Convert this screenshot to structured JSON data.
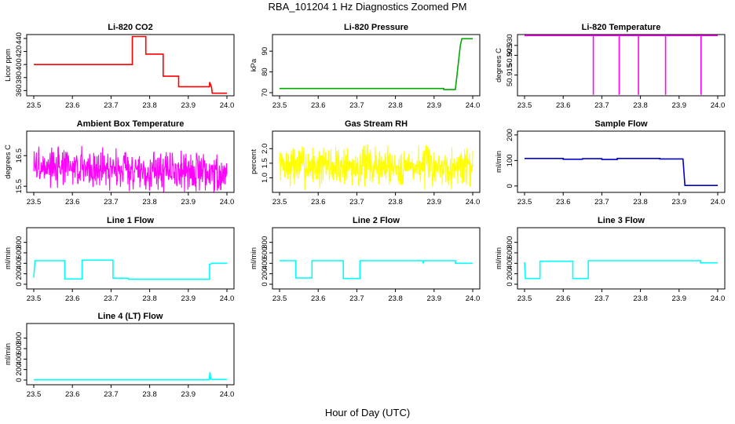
{
  "page": {
    "title": "RBA_101204  1 Hz Diagnostics Zoomed PM",
    "xlabel": "Hour of Day (UTC)"
  },
  "chart_data": [
    {
      "type": "line",
      "title": "Li-820 CO2",
      "ylabel": "Licor ppm",
      "color": "#ff0000",
      "xlim": [
        23.5,
        24.0
      ],
      "xticks": [
        "23.5",
        "23.6",
        "23.7",
        "23.8",
        "23.9",
        "24.0"
      ],
      "ylim": [
        352,
        446
      ],
      "yticks": [
        "360",
        "380",
        "400",
        "420",
        "440"
      ],
      "series": [
        {
          "x": [
            23.5,
            23.755,
            23.755,
            23.79,
            23.79,
            23.835,
            23.835,
            23.875,
            23.875,
            23.955,
            23.955,
            23.96,
            23.962,
            24.0
          ],
          "values": [
            400,
            400,
            443,
            443,
            416,
            416,
            382,
            382,
            366,
            366,
            373,
            366,
            356,
            356
          ]
        }
      ]
    },
    {
      "type": "line",
      "title": "Li-820 Pressure",
      "ylabel": "kPa",
      "color": "#00aa00",
      "xlim": [
        23.5,
        24.0
      ],
      "xticks": [
        "23.5",
        "23.6",
        "23.7",
        "23.8",
        "23.9",
        "24.0"
      ],
      "ylim": [
        68.5,
        98
      ],
      "yticks": [
        "70",
        "80",
        "90"
      ],
      "series": [
        {
          "x": [
            23.5,
            23.925,
            23.925,
            23.955,
            23.962,
            23.968,
            23.972,
            24.0
          ],
          "values": [
            72,
            72,
            71.5,
            71.5,
            83,
            93,
            96,
            96
          ]
        }
      ]
    },
    {
      "type": "line",
      "title": "Li-820 Temperature",
      "ylabel": "degrees C",
      "color": "#ff00ff",
      "xlim": [
        23.5,
        24.0
      ],
      "xticks": [
        "23.5",
        "23.6",
        "23.7",
        "23.8",
        "23.9",
        "24.0"
      ],
      "ylim": [
        50.9045,
        50.9355
      ],
      "yticks": [
        "50.915",
        "50.925",
        "50.930"
      ],
      "series": [
        {
          "x": [
            23.5,
            23.678,
            23.678,
            23.678,
            23.745,
            23.745,
            23.745,
            23.795,
            23.795,
            23.795,
            23.865,
            23.865,
            23.865,
            23.957,
            23.957,
            23.957,
            24.0
          ],
          "values": [
            50.935,
            50.935,
            50.905,
            50.935,
            50.935,
            50.905,
            50.935,
            50.935,
            50.905,
            50.935,
            50.935,
            50.905,
            50.935,
            50.935,
            50.905,
            50.935,
            50.935
          ]
        }
      ]
    },
    {
      "type": "line",
      "title": "Ambient Box Temperature",
      "ylabel": "degrees C",
      "color": "#ff00ff",
      "xlim": [
        23.5,
        24.0
      ],
      "xticks": [
        "23.5",
        "23.6",
        "23.7",
        "23.8",
        "23.9",
        "24.0"
      ],
      "ylim": [
        15.3,
        17.3
      ],
      "yticks": [
        "15.5",
        "16.5"
      ],
      "noise": {
        "base": [
          [
            23.5,
            16.15
          ],
          [
            24.0,
            15.95
          ]
        ],
        "amp": 0.75,
        "n": 520,
        "seed": 3
      }
    },
    {
      "type": "line",
      "title": "Gas Stream RH",
      "ylabel": "percent",
      "color": "#ffff00",
      "xlim": [
        23.5,
        24.0
      ],
      "xticks": [
        "23.5",
        "23.6",
        "23.7",
        "23.8",
        "23.9",
        "24.0"
      ],
      "ylim": [
        0.5,
        2.6
      ],
      "yticks": [
        "1.0",
        "1.5",
        "2.0"
      ],
      "noise": {
        "base": [
          [
            23.5,
            1.4
          ],
          [
            24.0,
            1.4
          ]
        ],
        "amp": 0.85,
        "n": 520,
        "seed": 7
      }
    },
    {
      "type": "line",
      "title": "Sample Flow",
      "ylabel": "ml/min",
      "color": "#0000cc",
      "xlim": [
        23.5,
        24.0
      ],
      "xticks": [
        "23.5",
        "23.6",
        "23.7",
        "23.8",
        "23.9",
        "24.0"
      ],
      "ylim": [
        -25,
        215
      ],
      "yticks": [
        "0",
        "100",
        "200"
      ],
      "series": [
        {
          "x": [
            23.5,
            23.6,
            23.6,
            23.65,
            23.65,
            23.7,
            23.7,
            23.74,
            23.74,
            23.85,
            23.85,
            23.91,
            23.91,
            23.915,
            24.0
          ],
          "values": [
            108,
            108,
            105,
            105,
            107,
            107,
            104,
            104,
            108,
            108,
            106,
            106,
            108,
            2,
            2
          ]
        }
      ]
    },
    {
      "type": "line",
      "title": "Line 1 Flow",
      "ylabel": "ml/min",
      "color": "#00ffff",
      "xlim": [
        23.5,
        24.0
      ],
      "xticks": [
        "23.5",
        "23.6",
        "23.7",
        "23.8",
        "23.9",
        "24.0"
      ],
      "ylim": [
        -90,
        1080
      ],
      "yticks": [
        "0",
        "200",
        "400",
        "600",
        "800"
      ],
      "series": [
        {
          "x": [
            23.5,
            23.503,
            23.506,
            23.58,
            23.58,
            23.625,
            23.625,
            23.705,
            23.705,
            23.745,
            23.745,
            23.955,
            23.955,
            23.962,
            24.0
          ],
          "values": [
            130,
            450,
            450,
            450,
            100,
            100,
            460,
            460,
            115,
            115,
            95,
            95,
            380,
            400,
            400
          ]
        }
      ]
    },
    {
      "type": "line",
      "title": "Line 2 Flow",
      "ylabel": "ml/min",
      "color": "#00ffff",
      "xlim": [
        23.5,
        24.0
      ],
      "xticks": [
        "23.5",
        "23.6",
        "23.7",
        "23.8",
        "23.9",
        "24.0"
      ],
      "ylim": [
        -90,
        1080
      ],
      "yticks": [
        "0",
        "200",
        "400",
        "600",
        "800"
      ],
      "series": [
        {
          "x": [
            23.5,
            23.542,
            23.542,
            23.584,
            23.584,
            23.665,
            23.665,
            23.708,
            23.708,
            23.87,
            23.872,
            23.874,
            23.955,
            23.955,
            24.0
          ],
          "values": [
            450,
            450,
            120,
            120,
            450,
            450,
            110,
            110,
            450,
            450,
            410,
            450,
            450,
            400,
            400
          ]
        }
      ]
    },
    {
      "type": "line",
      "title": "Line 3 Flow",
      "ylabel": "ml/min",
      "color": "#00ffff",
      "xlim": [
        23.5,
        24.0
      ],
      "xticks": [
        "23.5",
        "23.6",
        "23.7",
        "23.8",
        "23.9",
        "24.0"
      ],
      "ylim": [
        -90,
        1080
      ],
      "yticks": [
        "0",
        "200",
        "400",
        "600",
        "800"
      ],
      "series": [
        {
          "x": [
            23.5,
            23.502,
            23.504,
            23.54,
            23.54,
            23.625,
            23.625,
            23.665,
            23.665,
            23.955,
            23.955,
            24.0
          ],
          "values": [
            420,
            110,
            110,
            110,
            440,
            440,
            110,
            110,
            450,
            450,
            410,
            410
          ]
        }
      ]
    },
    {
      "type": "line",
      "title": "Line 4 (LT) Flow",
      "ylabel": "ml/min",
      "color": "#00ffff",
      "xlim": [
        23.5,
        24.0
      ],
      "xticks": [
        "23.5",
        "23.6",
        "23.7",
        "23.8",
        "23.9",
        "24.0"
      ],
      "ylim": [
        -90,
        1080
      ],
      "yticks": [
        "0",
        "200",
        "400",
        "600",
        "800"
      ],
      "series": [
        {
          "x": [
            23.5,
            23.954,
            23.956,
            23.958,
            23.962,
            24.0
          ],
          "values": [
            5,
            5,
            150,
            20,
            10,
            10
          ]
        }
      ]
    }
  ]
}
